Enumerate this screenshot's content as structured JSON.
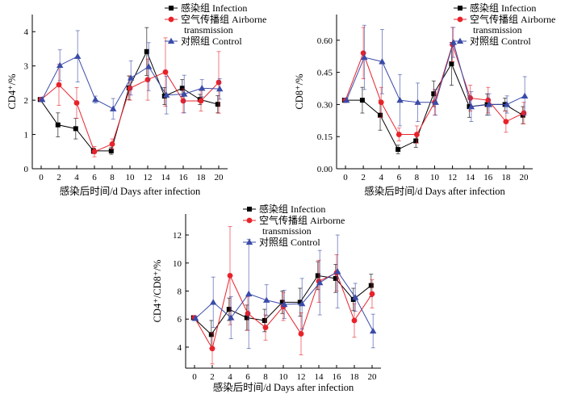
{
  "chart_data": [
    {
      "type": "line",
      "panel": "top-left",
      "xlabel": "感染后时间/d    Days after infection",
      "ylabel": "CD4⁺/%",
      "x": [
        0,
        2,
        4,
        6,
        8,
        10,
        12,
        14,
        16,
        18,
        20
      ],
      "xlim": [
        -1,
        21
      ],
      "ylim": [
        0,
        4.5
      ],
      "yticks": [
        "0",
        "1",
        "2",
        "3",
        "4"
      ],
      "ytick_values": [
        0,
        1,
        2,
        3,
        4
      ],
      "legend_position": "top-right",
      "series": [
        {
          "name": "感染组 Infection",
          "color": "#000000",
          "marker": "square",
          "values": [
            2.02,
            1.28,
            1.17,
            0.52,
            0.52,
            2.36,
            3.42,
            2.12,
            2.35,
            2.02,
            1.88
          ],
          "errors": [
            0.05,
            0.35,
            0.3,
            0.08,
            0.1,
            0.35,
            0.7,
            0.25,
            0.25,
            0.15,
            0.25
          ]
        },
        {
          "name": "空气传播组 Airborne transmission",
          "color": "#e8222a",
          "marker": "circle",
          "values": [
            2.02,
            2.45,
            1.92,
            0.5,
            0.72,
            2.35,
            2.6,
            2.82,
            1.98,
            1.98,
            2.52
          ],
          "errors": [
            0.05,
            0.6,
            0.45,
            0.15,
            0.15,
            0.35,
            0.6,
            1.0,
            0.35,
            0.3,
            0.9
          ]
        },
        {
          "name": "对照组 Control",
          "color": "#3a4ba8",
          "marker": "triangle",
          "values": [
            2.02,
            3.02,
            3.28,
            2.02,
            1.75,
            2.65,
            2.98,
            2.15,
            2.18,
            2.35,
            2.33
          ],
          "errors": [
            0.05,
            0.45,
            0.75,
            0.1,
            0.3,
            0.5,
            0.7,
            0.55,
            0.55,
            0.25,
            0.3
          ]
        }
      ]
    },
    {
      "type": "line",
      "panel": "top-right",
      "xlabel": "感染后时间/d    Days after infection",
      "ylabel": "CD8⁺/%",
      "x": [
        0,
        2,
        4,
        6,
        8,
        10,
        12,
        14,
        16,
        18,
        20
      ],
      "xlim": [
        -1,
        21
      ],
      "ylim": [
        0,
        0.72
      ],
      "yticks": [
        "0.00",
        "0.15",
        "0.30",
        "0.45",
        "0.60"
      ],
      "ytick_values": [
        0.0,
        0.15,
        0.3,
        0.45,
        0.6
      ],
      "legend_position": "top-right",
      "series": [
        {
          "name": "感染组 Infection",
          "color": "#000000",
          "marker": "square",
          "values": [
            0.32,
            0.32,
            0.25,
            0.09,
            0.13,
            0.35,
            0.49,
            0.29,
            0.3,
            0.3,
            0.25
          ],
          "errors": [
            0.01,
            0.06,
            0.07,
            0.02,
            0.03,
            0.06,
            0.1,
            0.05,
            0.05,
            0.03,
            0.04
          ]
        },
        {
          "name": "空气传播组 Airborne transmission",
          "color": "#e8222a",
          "marker": "circle",
          "values": [
            0.32,
            0.54,
            0.31,
            0.16,
            0.16,
            0.31,
            0.58,
            0.33,
            0.32,
            0.22,
            0.26
          ],
          "errors": [
            0.01,
            0.12,
            0.07,
            0.03,
            0.04,
            0.06,
            0.08,
            0.06,
            0.06,
            0.05,
            0.05
          ]
        },
        {
          "name": "对照组 Control",
          "color": "#3a4ba8",
          "marker": "triangle",
          "values": [
            0.32,
            0.52,
            0.5,
            0.32,
            0.31,
            0.31,
            0.59,
            0.29,
            0.3,
            0.3,
            0.34
          ],
          "errors": [
            0.01,
            0.15,
            0.15,
            0.12,
            0.09,
            0.06,
            0.07,
            0.07,
            0.05,
            0.04,
            0.09
          ]
        }
      ]
    },
    {
      "type": "line",
      "panel": "bottom",
      "xlabel": "感染后时间/d    Days after infection",
      "ylabel": "CD4⁺/CD8⁺/%",
      "x": [
        0,
        2,
        4,
        6,
        8,
        10,
        12,
        14,
        16,
        18,
        20
      ],
      "xlim": [
        -1,
        21
      ],
      "ylim": [
        2.5,
        13.5
      ],
      "yticks": [
        "4",
        "6",
        "8",
        "10",
        "12"
      ],
      "ytick_values": [
        4,
        6,
        8,
        10,
        12
      ],
      "legend_position": "top-right",
      "series": [
        {
          "name": "感染组 Infection",
          "color": "#000000",
          "marker": "square",
          "values": [
            6.1,
            4.9,
            6.7,
            6.1,
            5.9,
            7.2,
            7.2,
            9.1,
            8.9,
            7.4,
            8.4
          ],
          "errors": [
            0.15,
            1.0,
            0.8,
            0.9,
            0.8,
            0.8,
            1.0,
            1.0,
            1.0,
            0.8,
            0.8
          ]
        },
        {
          "name": "空气传播组 Airborne transmission",
          "color": "#e8222a",
          "marker": "circle",
          "values": [
            6.1,
            3.9,
            9.1,
            6.4,
            5.4,
            6.9,
            4.95,
            8.7,
            9.3,
            5.9,
            7.8
          ],
          "errors": [
            0.15,
            1.1,
            3.5,
            1.2,
            0.9,
            1.0,
            1.5,
            1.5,
            1.3,
            1.2,
            1.0
          ]
        },
        {
          "name": "对照组 Control",
          "color": "#3a4ba8",
          "marker": "triangle",
          "values": [
            6.05,
            7.2,
            6.1,
            7.8,
            7.35,
            7.05,
            7.1,
            8.6,
            9.4,
            7.55,
            5.15
          ],
          "errors": [
            0.15,
            1.8,
            1.5,
            3.9,
            1.1,
            1.0,
            1.8,
            2.3,
            2.6,
            1.0,
            1.2
          ]
        }
      ]
    }
  ]
}
